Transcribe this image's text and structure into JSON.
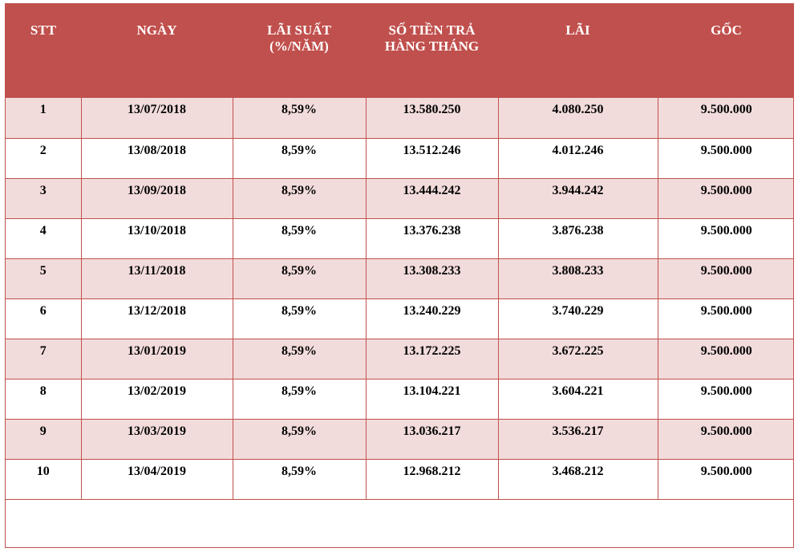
{
  "table": {
    "headers": [
      {
        "lines": [
          "STT"
        ]
      },
      {
        "lines": [
          "NGÀY"
        ]
      },
      {
        "lines": [
          "LÃI SUẤT",
          "(%/NĂM)"
        ]
      },
      {
        "lines": [
          "SỐ TIỀN TRẢ",
          "HÀNG THÁNG"
        ]
      },
      {
        "lines": [
          "LÃI"
        ]
      },
      {
        "lines": [
          "GỐC"
        ]
      }
    ],
    "rows": [
      [
        "1",
        "13/07/2018",
        "8,59%",
        "13.580.250",
        "4.080.250",
        "9.500.000"
      ],
      [
        "2",
        "13/08/2018",
        "8,59%",
        "13.512.246",
        "4.012.246",
        "9.500.000"
      ],
      [
        "3",
        "13/09/2018",
        "8,59%",
        "13.444.242",
        "3.944.242",
        "9.500.000"
      ],
      [
        "4",
        "13/10/2018",
        "8,59%",
        "13.376.238",
        "3.876.238",
        "9.500.000"
      ],
      [
        "5",
        "13/11/2018",
        "8,59%",
        "13.308.233",
        "3.808.233",
        "9.500.000"
      ],
      [
        "6",
        "13/12/2018",
        "8,59%",
        "13.240.229",
        "3.740.229",
        "9.500.000"
      ],
      [
        "7",
        "13/01/2019",
        "8,59%",
        "13.172.225",
        "3.672.225",
        "9.500.000"
      ],
      [
        "8",
        "13/02/2019",
        "8,59%",
        "13.104.221",
        "3.604.221",
        "9.500.000"
      ],
      [
        "9",
        "13/03/2019",
        "8,59%",
        "13.036.217",
        "3.536.217",
        "9.500.000"
      ],
      [
        "10",
        "13/04/2019",
        "8,59%",
        "12.968.212",
        "3.468.212",
        "9.500.000"
      ]
    ]
  },
  "colors": {
    "header_bg": "#c0504d",
    "header_text": "#ffffff",
    "row_band": "#f2dcdb",
    "row_plain": "#ffffff",
    "grid_line": "#c0504d"
  }
}
